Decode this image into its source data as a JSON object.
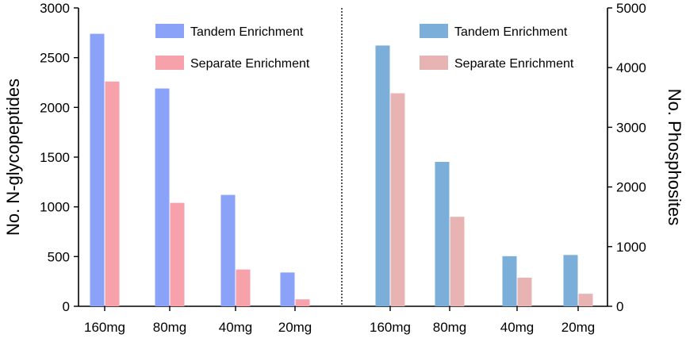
{
  "chart_data": {
    "type": "bar",
    "colors": {
      "left_tandem": "#8aa2f8",
      "left_separate": "#f7a1ab",
      "right_tandem": "#7baed8",
      "right_separate": "#e8b3b3"
    },
    "left_panel": {
      "ylabel": "No. N-glycopeptides",
      "ylim": [
        0,
        3000
      ],
      "yticks": [
        0,
        500,
        1000,
        1500,
        2000,
        2500,
        3000
      ],
      "categories": [
        "160mg",
        "80mg",
        "40mg",
        "20mg"
      ],
      "series": [
        {
          "name": "Tandem Enrichment",
          "values": [
            2740,
            2190,
            1120,
            340
          ]
        },
        {
          "name": "Separate Enrichment",
          "values": [
            2260,
            1040,
            370,
            70
          ]
        }
      ]
    },
    "right_panel": {
      "ylabel": "No. Phosphosites",
      "ylim": [
        0,
        5000
      ],
      "yticks": [
        0,
        1000,
        2000,
        3000,
        4000,
        5000
      ],
      "categories": [
        "160mg",
        "80mg",
        "40mg",
        "20mg"
      ],
      "series": [
        {
          "name": "Tandem Enrichment",
          "values": [
            4370,
            2420,
            840,
            860
          ]
        },
        {
          "name": "Separate Enrichment",
          "values": [
            3570,
            1500,
            480,
            210
          ]
        }
      ]
    }
  }
}
